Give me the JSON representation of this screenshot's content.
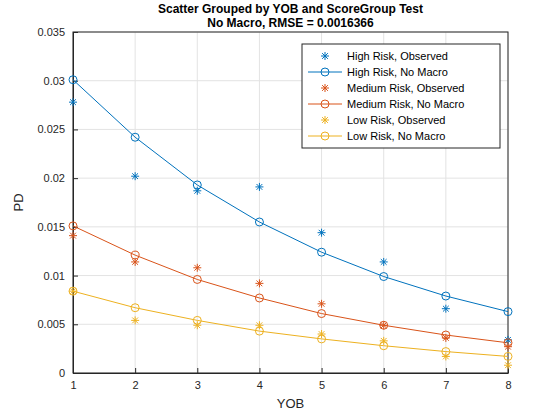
{
  "chart_data": {
    "type": "scatter",
    "title": "Scatter Grouped by YOB and ScoreGroup Test",
    "subtitle": "No Macro, RMSE = 0.0016366",
    "x_label": "YOB",
    "y_label": "PD",
    "x": [
      1,
      2,
      3,
      4,
      5,
      6,
      7,
      8
    ],
    "xlim": [
      1,
      8
    ],
    "xticks": [
      1,
      2,
      3,
      4,
      5,
      6,
      7,
      8
    ],
    "ylim": [
      0,
      0.035
    ],
    "yticks": [
      0,
      0.005,
      0.01,
      0.015,
      0.02,
      0.025,
      0.03,
      0.035
    ],
    "grid": true,
    "legend": "northeast",
    "series": [
      {
        "name": "High Risk, Observed",
        "color": "#0072bd",
        "marker": "asterisk",
        "line_style": "none",
        "values": [
          0.0278,
          0.0202,
          0.0187,
          0.0191,
          0.0144,
          0.0114,
          0.0066,
          0.0034
        ]
      },
      {
        "name": "High Risk, No Macro",
        "color": "#0072bd",
        "marker": "circle",
        "line_style": "solid",
        "values": [
          0.0301,
          0.0242,
          0.0193,
          0.0155,
          0.0124,
          0.0099,
          0.0079,
          0.0063
        ]
      },
      {
        "name": "Medium Risk, Observed",
        "color": "#d95319",
        "marker": "asterisk",
        "line_style": "none",
        "values": [
          0.0141,
          0.0114,
          0.0108,
          0.0092,
          0.0071,
          0.0049,
          0.0036,
          0.0027
        ]
      },
      {
        "name": "Medium Risk, No Macro",
        "color": "#d95319",
        "marker": "circle",
        "line_style": "solid",
        "values": [
          0.0151,
          0.0121,
          0.0096,
          0.0077,
          0.0061,
          0.0049,
          0.0039,
          0.0031
        ]
      },
      {
        "name": "Low Risk, Observed",
        "color": "#edb120",
        "marker": "asterisk",
        "line_style": "none",
        "values": [
          0.0084,
          0.0054,
          0.0049,
          0.0049,
          0.004,
          0.0033,
          0.0017,
          0.0008
        ]
      },
      {
        "name": "Low Risk, No Macro",
        "color": "#edb120",
        "marker": "circle",
        "line_style": "solid",
        "values": [
          0.0084,
          0.0067,
          0.0054,
          0.0043,
          0.0035,
          0.0028,
          0.0022,
          0.0017
        ]
      }
    ]
  }
}
